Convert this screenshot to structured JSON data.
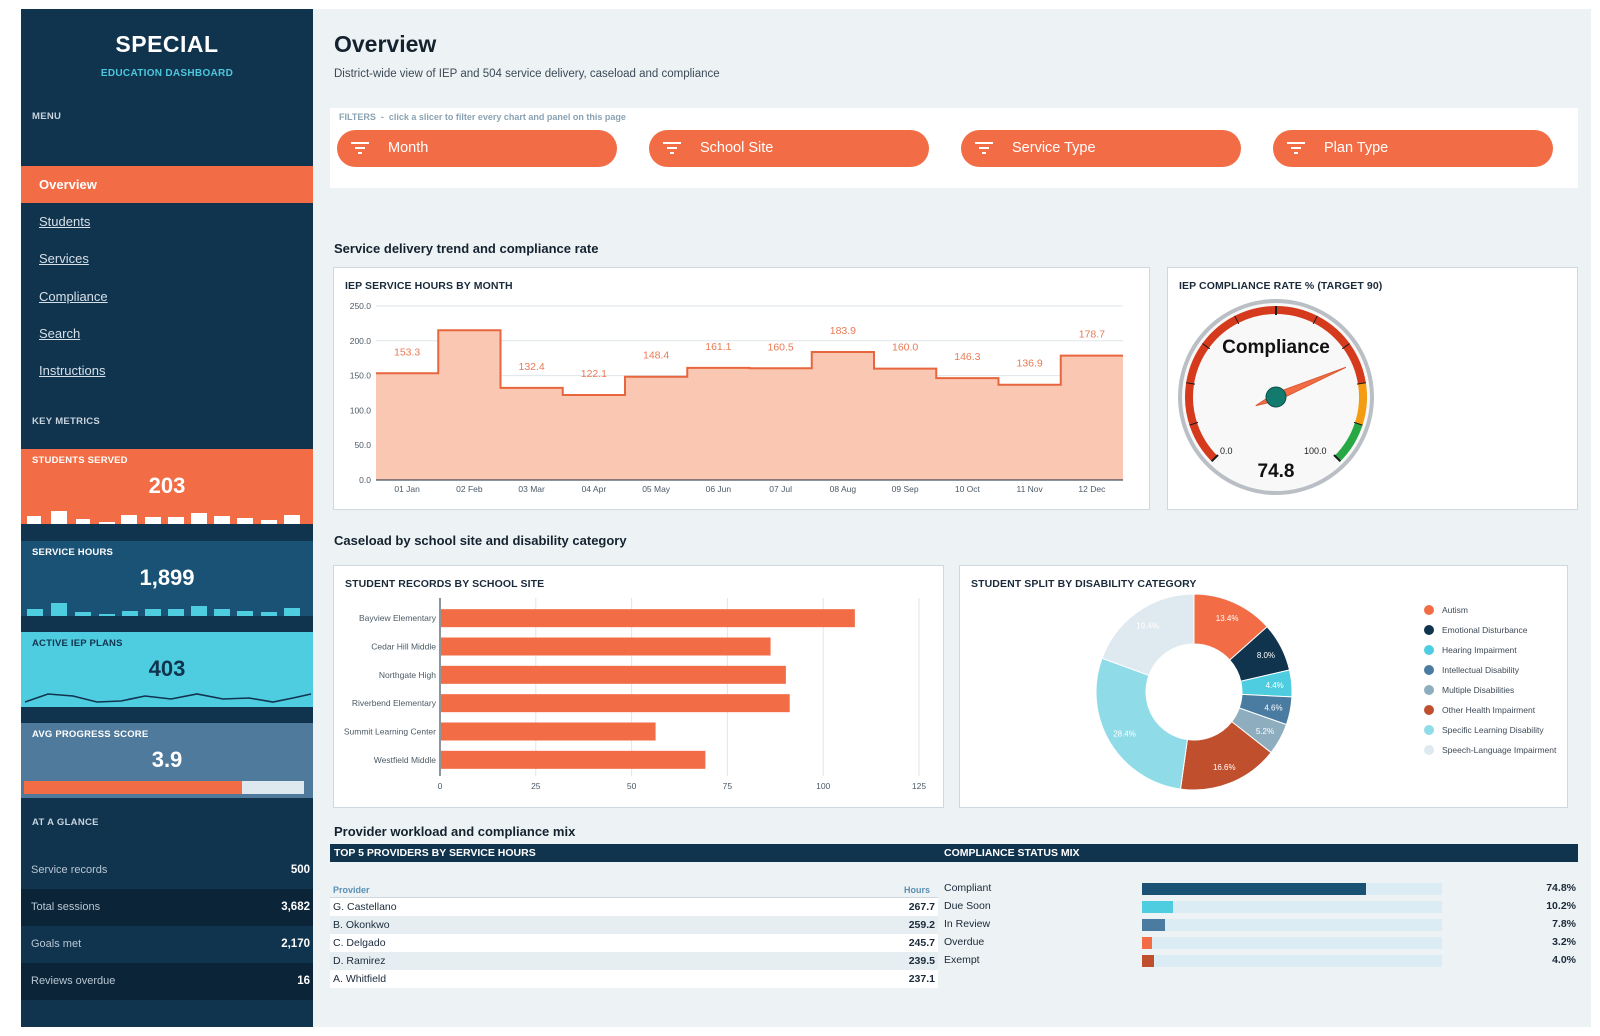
{
  "sidebar": {
    "brand": "SPECIAL",
    "brand_sub": "EDUCATION DASHBOARD",
    "menu_heading": "MENU",
    "nav": [
      {
        "label": "Overview",
        "active": true
      },
      {
        "label": "Students"
      },
      {
        "label": "Services"
      },
      {
        "label": "Compliance"
      },
      {
        "label": "Search"
      },
      {
        "label": "Instructions"
      }
    ],
    "key_metrics_heading": "KEY METRICS",
    "metrics": [
      {
        "label": "STUDENTS SERVED",
        "value": "203",
        "color": "#f26d45"
      },
      {
        "label": "SERVICE HOURS",
        "value": "1,899",
        "color": "#1a5276"
      },
      {
        "label": "ACTIVE IEP PLANS",
        "value": "403",
        "color": "#4ecde0"
      },
      {
        "label": "AVG PROGRESS SCORE",
        "value": "3.9",
        "color": "#4f7a9c",
        "progress": 0.78
      }
    ],
    "glance_heading": "AT A GLANCE",
    "glance": [
      {
        "label": "Service records",
        "value": "500"
      },
      {
        "label": "Total sessions",
        "value": "3,682"
      },
      {
        "label": "Goals met",
        "value": "2,170"
      },
      {
        "label": "Reviews overdue",
        "value": "16"
      }
    ]
  },
  "header": {
    "title": "Overview",
    "subtitle": "District-wide view of IEP and 504 service delivery, caseload and compliance"
  },
  "filters": {
    "label": "FILTERS",
    "hint": "click a slicer to filter every chart and panel on this page",
    "slicers": [
      "Month",
      "School Site",
      "Service Type",
      "Plan Type"
    ]
  },
  "sections": {
    "trend": "Service delivery trend and compliance rate",
    "caseload": "Caseload by school site and disability category",
    "provider": "Provider workload and compliance mix"
  },
  "chart_data": [
    {
      "id": "hours",
      "type": "area",
      "title": "IEP SERVICE HOURS BY MONTH",
      "categories": [
        "01 Jan",
        "02 Feb",
        "03 Mar",
        "04 Apr",
        "05 May",
        "06 Jun",
        "07 Jul",
        "08 Aug",
        "09 Sep",
        "10 Oct",
        "11 Nov",
        "12 Dec"
      ],
      "values": [
        153.3,
        215.2,
        132.4,
        122.1,
        148.4,
        161.1,
        160.5,
        183.9,
        160.0,
        146.3,
        136.9,
        178.7
      ],
      "data_labels": [
        "153.3",
        "",
        "132.4",
        "122.1",
        "148.4",
        "161.1",
        "160.5",
        "183.9",
        "160.0",
        "146.3",
        "136.9",
        "178.7"
      ],
      "ylim": [
        0,
        250
      ],
      "yticks": [
        "0.0",
        "50.0",
        "100.0",
        "150.0",
        "200.0",
        "250.0"
      ],
      "color": "#f4845f",
      "fill": "#fac7b3"
    },
    {
      "id": "gauge",
      "type": "gauge",
      "title": "IEP COMPLIANCE RATE % (TARGET 90)",
      "label": "Compliance",
      "value": 74.8,
      "value_text": "74.8",
      "min": 0,
      "max": 100,
      "min_text": "0.0",
      "max_text": "100.0",
      "bands": [
        {
          "from": 0,
          "to": 80,
          "color": "#d63a1c"
        },
        {
          "from": 80,
          "to": 90,
          "color": "#f39c12"
        },
        {
          "from": 90,
          "to": 100,
          "color": "#27a844"
        }
      ]
    },
    {
      "id": "sites",
      "type": "bar",
      "orientation": "horizontal",
      "title": "STUDENT RECORDS BY SCHOOL SITE",
      "categories": [
        "Bayview Elementary",
        "Cedar Hill Middle",
        "Northgate High",
        "Riverbend Elementary",
        "Summit Learning Center",
        "Westfield Middle"
      ],
      "values": [
        108,
        86,
        90,
        91,
        56,
        69
      ],
      "xlim": [
        0,
        125
      ],
      "xticks": [
        "0",
        "25",
        "50",
        "75",
        "100",
        "125"
      ],
      "color": "#f26d45"
    },
    {
      "id": "disability",
      "type": "pie",
      "donut": true,
      "title": "STUDENT SPLIT BY DISABILITY CATEGORY",
      "categories": [
        "Autism",
        "Emotional Disturbance",
        "Hearing Impairment",
        "Intellectual Disability",
        "Multiple Disabilities",
        "Other Health Impairment",
        "Specific Learning Disability",
        "Speech-Language Impairment"
      ],
      "values": [
        13.4,
        8.0,
        4.4,
        4.6,
        5.2,
        16.6,
        28.4,
        19.4
      ],
      "labels": [
        "13.4%",
        "8.0%",
        "4.4%",
        "4.6%",
        "5.2%",
        "16.6%",
        "28.4%",
        "19.4%"
      ],
      "colors": [
        "#f26d45",
        "#10334e",
        "#4ecde0",
        "#4a7ba0",
        "#8eadbe",
        "#c0502d",
        "#8fdce8",
        "#dfeaf0"
      ],
      "legend_position": "right"
    }
  ],
  "providers": {
    "title": "TOP 5 PROVIDERS BY SERVICE HOURS",
    "col_provider": "Provider",
    "col_hours": "Hours",
    "rows": [
      {
        "name": "G. Castellano",
        "hours": "267.7"
      },
      {
        "name": "B. Okonkwo",
        "hours": "259.2"
      },
      {
        "name": "C. Delgado",
        "hours": "245.7"
      },
      {
        "name": "D. Ramirez",
        "hours": "239.5"
      },
      {
        "name": "A. Whitfield",
        "hours": "237.1"
      }
    ]
  },
  "compliance_mix": {
    "title": "COMPLIANCE STATUS MIX",
    "rows": [
      {
        "label": "Compliant",
        "value": "74.8%",
        "fraction": 0.748,
        "color": "#1a5276"
      },
      {
        "label": "Due Soon",
        "value": "10.2%",
        "fraction": 0.102,
        "color": "#4ecde0"
      },
      {
        "label": "In Review",
        "value": "7.8%",
        "fraction": 0.078,
        "color": "#4a7ba0"
      },
      {
        "label": "Overdue",
        "value": "3.2%",
        "fraction": 0.032,
        "color": "#f26d45"
      },
      {
        "label": "Exempt",
        "value": "4.0%",
        "fraction": 0.04,
        "color": "#c0502d"
      }
    ]
  }
}
